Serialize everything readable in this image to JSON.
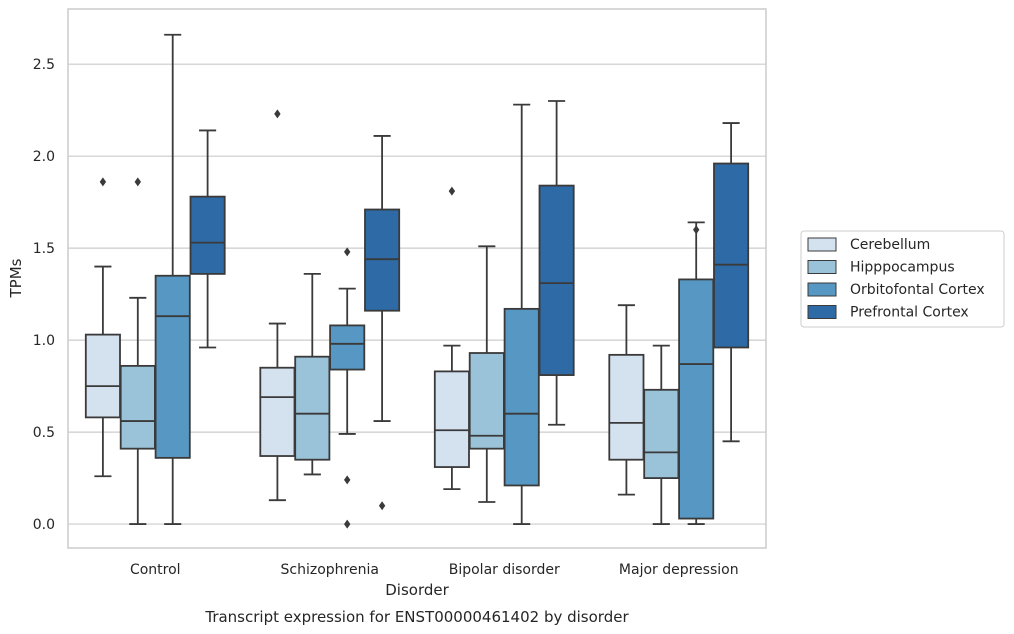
{
  "caption": "Transcript expression for ENST00000461402 by disorder",
  "chart_data": {
    "type": "box",
    "xlabel": "Disorder",
    "ylabel": "TPMs",
    "ylim": [
      -0.13,
      2.8
    ],
    "yticks": [
      "0.0",
      "0.5",
      "1.0",
      "1.5",
      "2.0",
      "2.5"
    ],
    "grid": "horizontal",
    "legend_position": "right",
    "categories": [
      "Control",
      "Schizophrenia",
      "Bipolar disorder",
      "Major depression"
    ],
    "series": [
      {
        "name": "Cerebellum",
        "color": "#d4e2f0",
        "boxes": [
          {
            "whislo": 0.26,
            "q1": 0.58,
            "med": 0.75,
            "q3": 1.03,
            "whishi": 1.4,
            "fliers": [
              1.86
            ]
          },
          {
            "whislo": 0.13,
            "q1": 0.37,
            "med": 0.69,
            "q3": 0.85,
            "whishi": 1.09,
            "fliers": [
              2.23
            ]
          },
          {
            "whislo": 0.19,
            "q1": 0.31,
            "med": 0.51,
            "q3": 0.83,
            "whishi": 0.97,
            "fliers": [
              1.81
            ]
          },
          {
            "whislo": 0.16,
            "q1": 0.35,
            "med": 0.55,
            "q3": 0.92,
            "whishi": 1.19,
            "fliers": []
          }
        ]
      },
      {
        "name": "Hipppocampus",
        "color": "#9ac2d8",
        "boxes": [
          {
            "whislo": 0.0,
            "q1": 0.41,
            "med": 0.56,
            "q3": 0.86,
            "whishi": 1.23,
            "fliers": [
              1.86
            ]
          },
          {
            "whislo": 0.27,
            "q1": 0.35,
            "med": 0.6,
            "q3": 0.91,
            "whishi": 1.36,
            "fliers": []
          },
          {
            "whislo": 0.12,
            "q1": 0.41,
            "med": 0.48,
            "q3": 0.93,
            "whishi": 1.51,
            "fliers": []
          },
          {
            "whislo": 0.0,
            "q1": 0.25,
            "med": 0.39,
            "q3": 0.73,
            "whishi": 0.97,
            "fliers": []
          }
        ]
      },
      {
        "name": "Orbitofontal Cortex",
        "color": "#5797c3",
        "boxes": [
          {
            "whislo": 0.0,
            "q1": 0.36,
            "med": 1.13,
            "q3": 1.35,
            "whishi": 2.66,
            "fliers": []
          },
          {
            "whislo": 0.49,
            "q1": 0.84,
            "med": 0.98,
            "q3": 1.08,
            "whishi": 1.28,
            "fliers": [
              1.48,
              0.24,
              0.0
            ]
          },
          {
            "whislo": 0.0,
            "q1": 0.21,
            "med": 0.6,
            "q3": 1.17,
            "whishi": 2.28,
            "fliers": []
          },
          {
            "whislo": 0.0,
            "q1": 0.03,
            "med": 0.87,
            "q3": 1.33,
            "whishi": 1.64,
            "fliers": [
              1.6
            ]
          }
        ]
      },
      {
        "name": "Prefrontal Cortex",
        "color": "#2e6aa5",
        "boxes": [
          {
            "whislo": 0.96,
            "q1": 1.36,
            "med": 1.53,
            "q3": 1.78,
            "whishi": 2.14,
            "fliers": []
          },
          {
            "whislo": 0.56,
            "q1": 1.16,
            "med": 1.44,
            "q3": 1.71,
            "whishi": 2.11,
            "fliers": [
              0.1
            ]
          },
          {
            "whislo": 0.54,
            "q1": 0.81,
            "med": 1.31,
            "q3": 1.84,
            "whishi": 2.3,
            "fliers": []
          },
          {
            "whislo": 0.45,
            "q1": 0.96,
            "med": 1.41,
            "q3": 1.96,
            "whishi": 2.18,
            "fliers": []
          }
        ]
      }
    ]
  }
}
